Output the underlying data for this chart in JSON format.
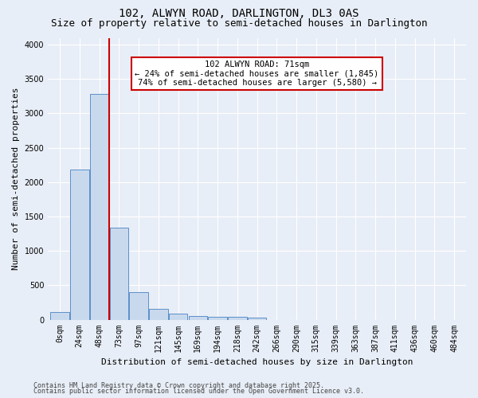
{
  "title": "102, ALWYN ROAD, DARLINGTON, DL3 0AS",
  "subtitle": "Size of property relative to semi-detached houses in Darlington",
  "xlabel": "Distribution of semi-detached houses by size in Darlington",
  "ylabel": "Number of semi-detached properties",
  "bar_labels": [
    "0sqm",
    "24sqm",
    "48sqm",
    "73sqm",
    "97sqm",
    "121sqm",
    "145sqm",
    "169sqm",
    "194sqm",
    "218sqm",
    "242sqm",
    "266sqm",
    "290sqm",
    "315sqm",
    "339sqm",
    "363sqm",
    "387sqm",
    "411sqm",
    "436sqm",
    "460sqm",
    "484sqm"
  ],
  "bar_values": [
    110,
    2180,
    3280,
    1340,
    400,
    155,
    90,
    50,
    40,
    40,
    30,
    0,
    0,
    0,
    0,
    0,
    0,
    0,
    0,
    0,
    0
  ],
  "bar_color": "#c9d9ed",
  "bar_edge_color": "#5b8fc9",
  "vline_bar_index": 3,
  "annotation_title": "102 ALWYN ROAD: 71sqm",
  "annotation_line1": "← 24% of semi-detached houses are smaller (1,845)",
  "annotation_line2": "74% of semi-detached houses are larger (5,580) →",
  "annotation_box_color": "#ffffff",
  "annotation_box_edge": "#cc0000",
  "vline_color": "#cc0000",
  "ylim": [
    0,
    4100
  ],
  "yticks": [
    0,
    500,
    1000,
    1500,
    2000,
    2500,
    3000,
    3500,
    4000
  ],
  "background_color": "#e8eef7",
  "grid_color": "#ffffff",
  "footer1": "Contains HM Land Registry data © Crown copyright and database right 2025.",
  "footer2": "Contains public sector information licensed under the Open Government Licence v3.0.",
  "title_fontsize": 10,
  "subtitle_fontsize": 9,
  "axis_label_fontsize": 8,
  "tick_fontsize": 7,
  "annotation_fontsize": 7.5,
  "footer_fontsize": 6
}
